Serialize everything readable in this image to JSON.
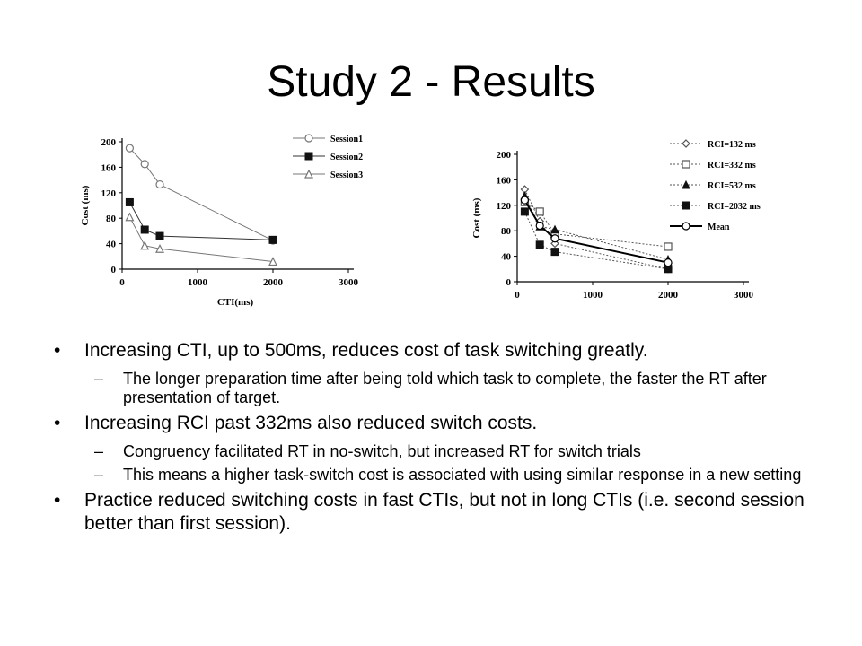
{
  "slide": {
    "title": "Study 2 - Results"
  },
  "chart_data": [
    {
      "type": "line",
      "xlabel": "CTI(ms)",
      "ylabel": "Cost (ms)",
      "xlim": [
        0,
        3000
      ],
      "ylim": [
        0,
        200
      ],
      "xticks": [
        0,
        1000,
        2000,
        3000
      ],
      "yticks": [
        0,
        40,
        80,
        120,
        160,
        200
      ],
      "legend": "top-right",
      "series": [
        {
          "name": "Session1",
          "marker": "circle-open",
          "color": "#777777",
          "x": [
            100,
            300,
            500,
            2000
          ],
          "y": [
            190,
            165,
            133,
            45
          ]
        },
        {
          "name": "Session2",
          "marker": "square-filled",
          "color": "#333333",
          "x": [
            100,
            300,
            500,
            2000
          ],
          "y": [
            105,
            62,
            52,
            46
          ]
        },
        {
          "name": "Session3",
          "marker": "triangle-open",
          "color": "#777777",
          "x": [
            100,
            300,
            500,
            2000
          ],
          "y": [
            82,
            37,
            32,
            12
          ]
        }
      ]
    },
    {
      "type": "line",
      "xlabel": "",
      "ylabel": "Cost (ms)",
      "xlim": [
        0,
        3000
      ],
      "ylim": [
        0,
        200
      ],
      "xticks": [
        0,
        1000,
        2000,
        3000
      ],
      "yticks": [
        0,
        40,
        80,
        120,
        160,
        200
      ],
      "legend": "top-right",
      "series": [
        {
          "name": "RCI=132 ms",
          "marker": "diamond-open",
          "dashed": true,
          "color": "#555555",
          "x": [
            100,
            300,
            500,
            2000
          ],
          "y": [
            145,
            95,
            60,
            20
          ]
        },
        {
          "name": "RCI=332 ms",
          "marker": "square-open",
          "dashed": true,
          "color": "#555555",
          "x": [
            100,
            300,
            500,
            2000
          ],
          "y": [
            125,
            110,
            75,
            55
          ]
        },
        {
          "name": "RCI=532 ms",
          "marker": "triangle-filled",
          "dashed": true,
          "color": "#555555",
          "x": [
            100,
            300,
            500,
            2000
          ],
          "y": [
            135,
            87,
            82,
            35
          ]
        },
        {
          "name": "RCI=2032 ms",
          "marker": "square-filled",
          "dashed": true,
          "color": "#555555",
          "x": [
            100,
            300,
            500,
            2000
          ],
          "y": [
            110,
            58,
            47,
            20
          ]
        },
        {
          "name": "Mean",
          "marker": "circle-open",
          "dashed": false,
          "color": "#000000",
          "x": [
            100,
            300,
            500,
            2000
          ],
          "y": [
            128,
            88,
            68,
            30
          ]
        }
      ]
    }
  ],
  "bullets": [
    {
      "level": 1,
      "text": "Increasing CTI, up to 500ms, reduces cost of task switching greatly."
    },
    {
      "level": 2,
      "text": "The longer preparation time after being told which task to complete, the faster the RT after presentation of target."
    },
    {
      "level": 1,
      "text": "Increasing RCI past 332ms also reduced switch costs."
    },
    {
      "level": 2,
      "text": "Congruency facilitated RT in no-switch, but increased RT for switch trials"
    },
    {
      "level": 2,
      "text": "This means a higher task-switch cost is associated with using similar response in a new setting"
    },
    {
      "level": 1,
      "text": "Practice reduced switching costs in fast CTIs, but not in long CTIs (i.e. second session better than first session)."
    }
  ]
}
